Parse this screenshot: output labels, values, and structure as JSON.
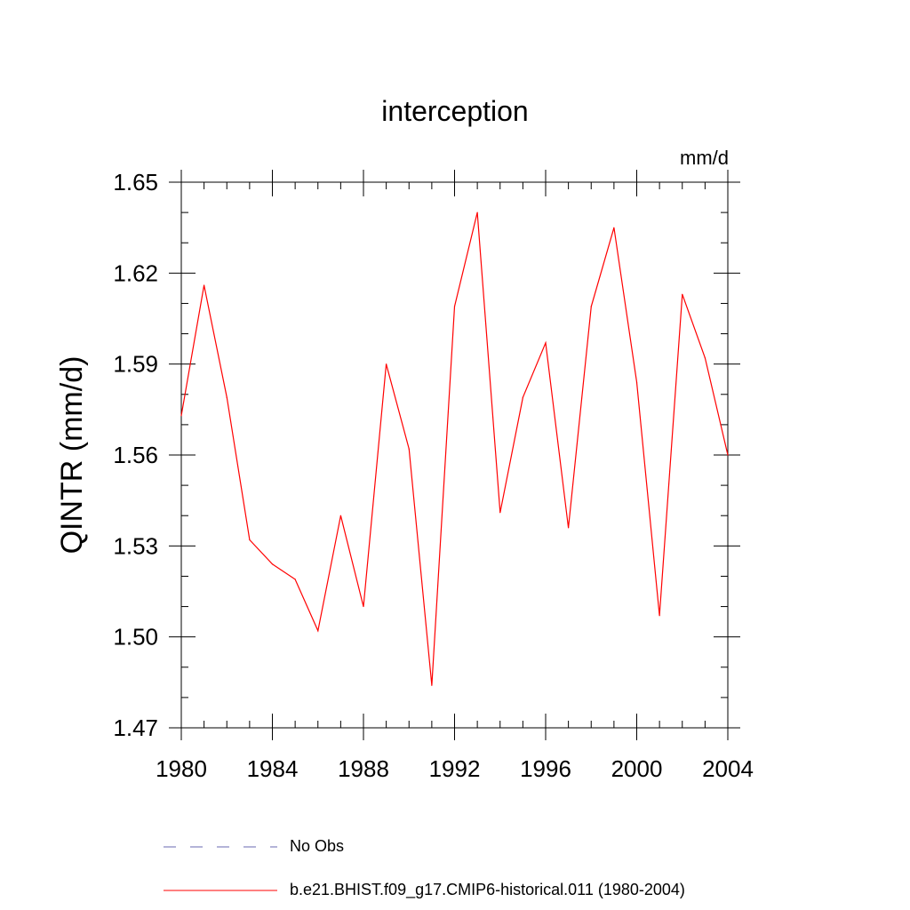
{
  "chart_data": {
    "type": "line",
    "title": "interception",
    "units": "mm/d",
    "ylabel": "QINTR  (mm/d)",
    "xlabel": "",
    "xlim": [
      1980,
      2004
    ],
    "ylim": [
      1.47,
      1.65
    ],
    "x_ticks": [
      "1980",
      "1984",
      "1988",
      "1992",
      "1996",
      "2000",
      "2004"
    ],
    "y_ticks": [
      "1.47",
      "1.50",
      "1.53",
      "1.56",
      "1.59",
      "1.62",
      "1.65"
    ],
    "grid": false,
    "legend_position": "bottom",
    "series": [
      {
        "name": "b.e21.BHIST.f09_g17.CMIP6-historical.011 (1980-2004)",
        "color": "#ff0000",
        "style": "solid",
        "x": [
          1980,
          1981,
          1982,
          1983,
          1984,
          1985,
          1986,
          1987,
          1988,
          1989,
          1990,
          1991,
          1992,
          1993,
          1994,
          1995,
          1996,
          1997,
          1998,
          1999,
          2000,
          2001,
          2002,
          2003,
          2004
        ],
        "y": [
          1.573,
          1.616,
          1.579,
          1.532,
          1.524,
          1.519,
          1.502,
          1.54,
          1.51,
          1.59,
          1.562,
          1.484,
          1.609,
          1.64,
          1.541,
          1.579,
          1.597,
          1.536,
          1.609,
          1.635,
          1.584,
          1.507,
          1.613,
          1.592,
          1.56
        ]
      }
    ],
    "legend": [
      {
        "label": "No Obs",
        "color": "#6a6ab0",
        "style": "dashed"
      },
      {
        "label": "b.e21.BHIST.f09_g17.CMIP6-historical.011 (1980-2004)",
        "color": "#ff0000",
        "style": "solid"
      }
    ]
  }
}
